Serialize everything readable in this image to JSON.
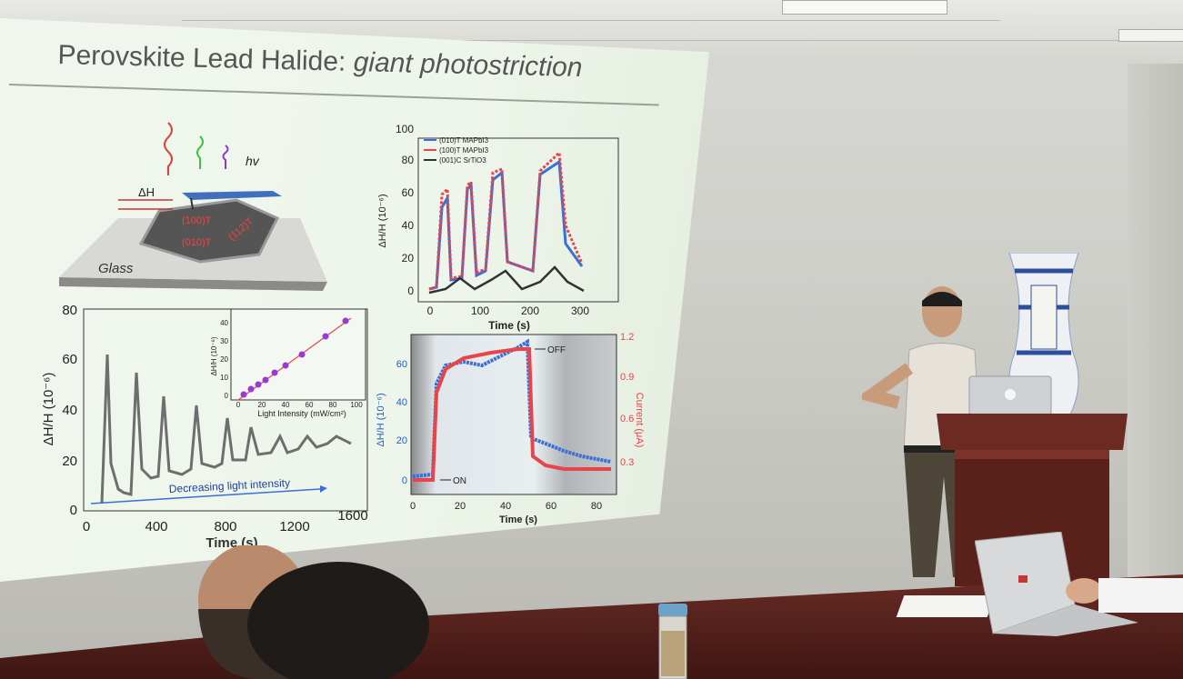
{
  "slide": {
    "title_main": "Perovskite Lead Halide:",
    "title_italic": "giant photostriction",
    "schematic": {
      "delta_h": "ΔH",
      "hv": "hv",
      "glass": "Glass",
      "face_a": "(100)T",
      "face_b": "(010)T",
      "face_c": "(112)T"
    },
    "chart_top": {
      "ylabel": "ΔH/H (10⁻⁶)",
      "xlabel": "Time (s)",
      "yticks": [
        "0",
        "20",
        "40",
        "60",
        "80",
        "100"
      ],
      "xticks": [
        "0",
        "100",
        "200",
        "300"
      ],
      "legend": [
        "(010)T MAPbI3",
        "(100)T MAPbI3",
        "(001)C SrTiO3"
      ]
    },
    "chart_left": {
      "ylabel": "ΔH/H (10⁻⁶)",
      "xlabel": "Time (s)",
      "yticks": [
        "0",
        "20",
        "40",
        "60",
        "80"
      ],
      "xticks": [
        "0",
        "400",
        "800",
        "1200",
        "1600"
      ],
      "annotation": "Decreasing light intensity",
      "inset_ylabel": "ΔH/H (10⁻⁶)",
      "inset_xlabel": "Light Intensity (mW/cm²)",
      "inset_yticks": [
        "0",
        "10",
        "20",
        "30",
        "40"
      ],
      "inset_xticks": [
        "0",
        "20",
        "40",
        "60",
        "80",
        "100"
      ]
    },
    "chart_bottom": {
      "ylabel": "ΔH/H (10⁻⁶)",
      "y2label": "Current (μA)",
      "xlabel": "Time (s)",
      "yticks": [
        "0",
        "20",
        "40",
        "60"
      ],
      "y2ticks": [
        "0.3",
        "0.6",
        "0.9",
        "1.2"
      ],
      "xticks": [
        "0",
        "20",
        "40",
        "60",
        "80"
      ],
      "label_on": "ON",
      "label_off": "OFF"
    }
  },
  "colors": {
    "series_blue": "#3a6fd8",
    "series_red": "#e8454a",
    "series_black": "#333333",
    "series_grey": "#6e6e6e",
    "inset_marker": "#9a3ad0"
  }
}
